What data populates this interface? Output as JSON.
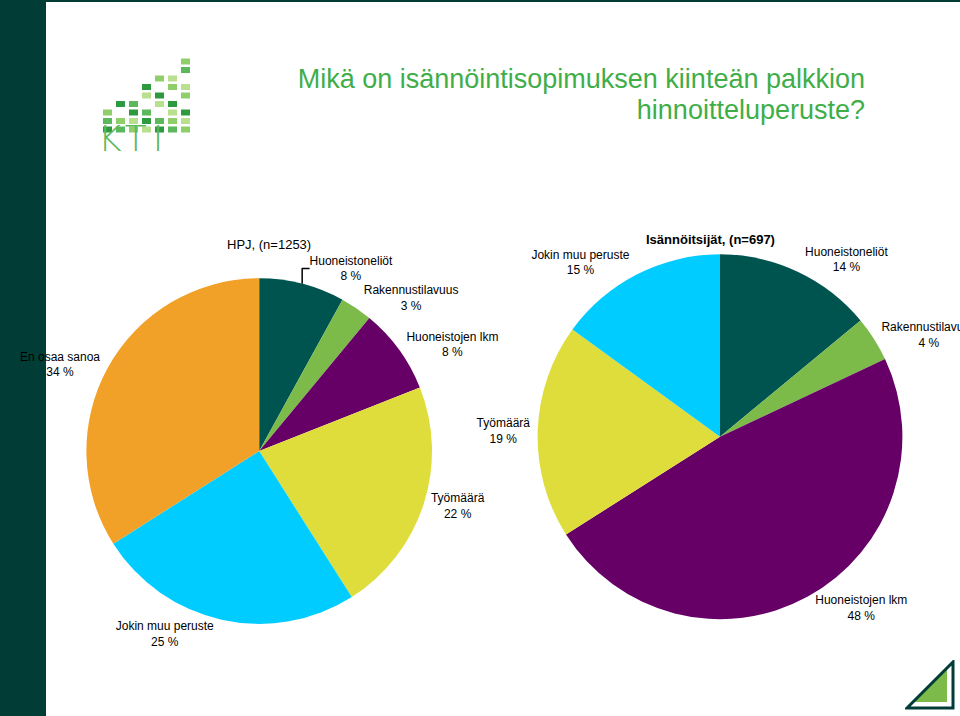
{
  "title": "Mikä on isännöintisopimuksen kiinteän palkkion hinnoitteluperuste?",
  "logo": "KTI",
  "chart_data": [
    {
      "type": "pie",
      "title": "HPJ, (n=1253)",
      "categories": [
        "Huoneistoneliöt",
        "Rakennustilavuus",
        "Huoneistojen lkm",
        "Työmäärä",
        "Jokin muu peruste",
        "En osaa sanoa"
      ],
      "values": [
        8,
        3,
        8,
        22,
        25,
        34
      ],
      "value_labels": [
        "8 %",
        "3 %",
        "8 %",
        "22 %",
        "25 %",
        "34 %"
      ],
      "colors": [
        "#005450",
        "#7cbb4a",
        "#660066",
        "#dedd3c",
        "#00ccff",
        "#f2a128"
      ],
      "data_labels": true
    },
    {
      "type": "pie",
      "title": "Isännöitsijät, (n=697)",
      "categories": [
        "Huoneistoneliöt",
        "Rakennustilavuus",
        "Huoneistojen lkm",
        "Työmäärä",
        "Jokin muu peruste"
      ],
      "values": [
        14,
        4,
        48,
        19,
        15
      ],
      "value_labels": [
        "14 %",
        "4 %",
        "48 %",
        "19 %",
        "15 %"
      ],
      "colors": [
        "#005450",
        "#7cbb4a",
        "#660066",
        "#dedd3c",
        "#00ccff"
      ],
      "data_labels": true
    }
  ]
}
